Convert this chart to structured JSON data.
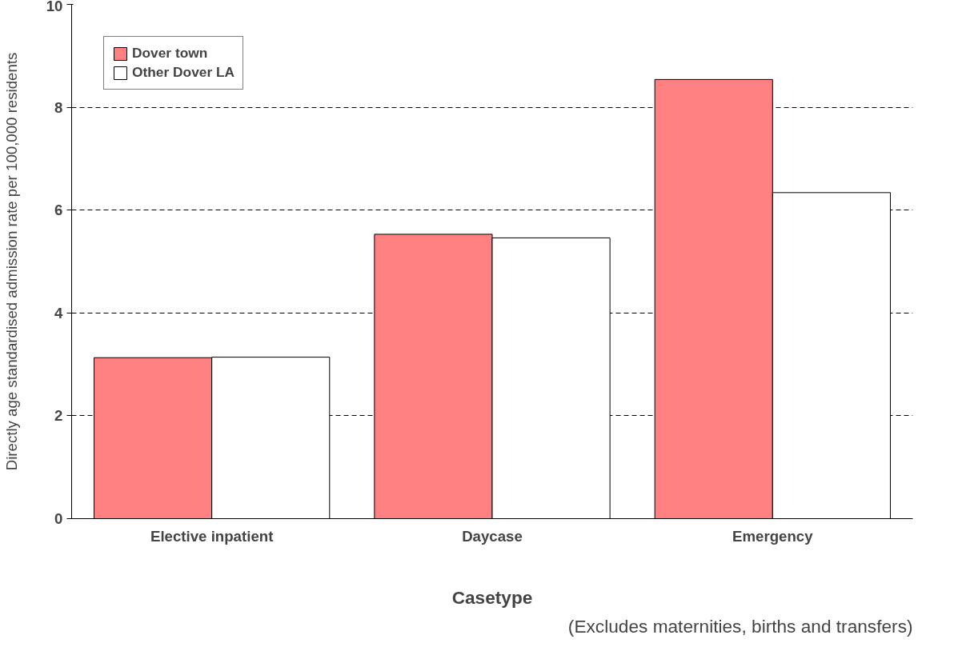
{
  "chart_data": {
    "type": "bar",
    "xlabel": "Casetype",
    "ylabel": "Directly age standardised admission rate per 100,000 residents",
    "categories": [
      "Elective inpatient",
      "Daycase",
      "Emergency"
    ],
    "series": [
      {
        "name": "Dover town",
        "color": "#ff8080",
        "values": [
          3.13,
          5.53,
          8.54
        ]
      },
      {
        "name": "Other Dover LA",
        "color": "#ffffff",
        "values": [
          3.14,
          5.46,
          6.34
        ]
      }
    ],
    "ylim": [
      0,
      10
    ],
    "yticks": [
      0,
      2,
      4,
      6,
      8,
      10
    ],
    "grid": "y",
    "line_style": "dashed",
    "legend": "top left",
    "annotations": [
      "(Excludes maternities, births and transfers)"
    ]
  }
}
